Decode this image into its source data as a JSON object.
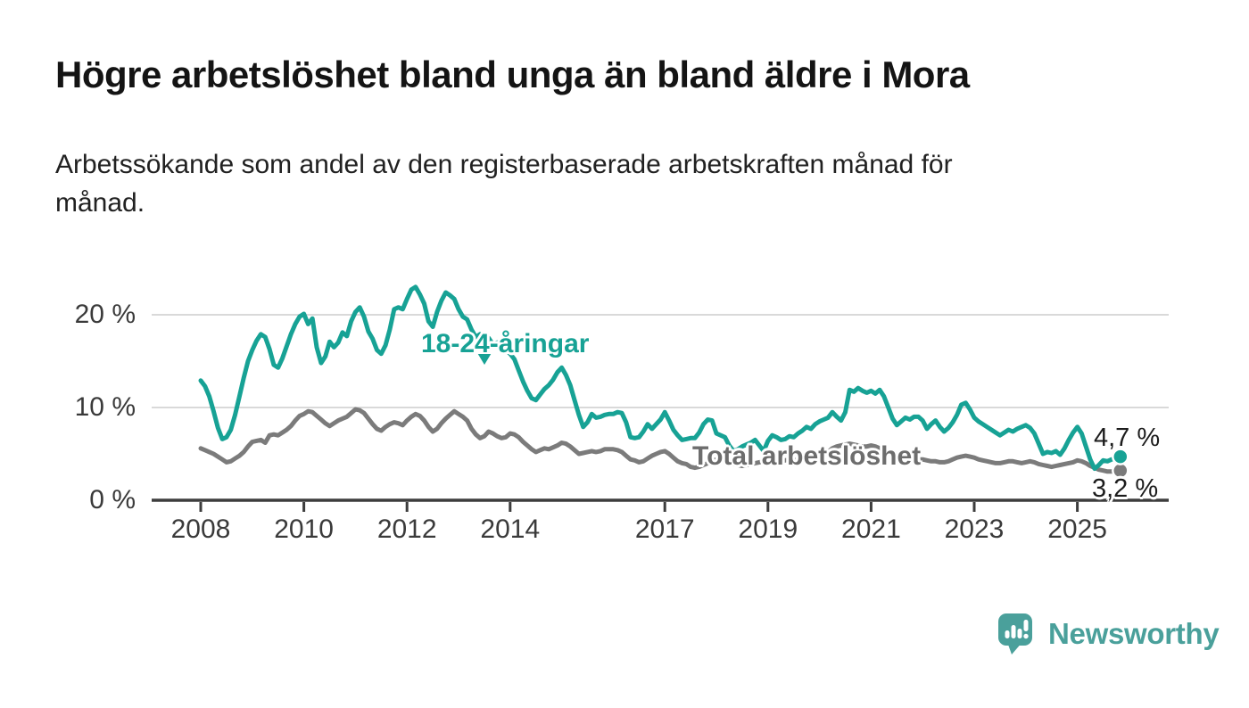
{
  "page": {
    "title": "Högre arbetslöshet bland unga än bland äldre i Mora",
    "subtitle": "Arbetssökande som andel av den registerbaserade arbetskraften månad för månad.",
    "background": "#ffffff"
  },
  "branding": {
    "name": "Newsworthy",
    "icon": "newsworthy-logo-icon",
    "color": "#4aa09b"
  },
  "colors": {
    "youth_line": "#17a295",
    "total_line": "#7b7b7b",
    "total_label": "#6d6d6d",
    "axis": "#3d3d3d",
    "grid": "#d9d9d9",
    "value_label": "#1c1c1c"
  },
  "chart_data": {
    "type": "line",
    "title": "Högre arbetslöshet bland unga än bland äldre i Mora",
    "subtitle": "Arbetssökande som andel av den registerbaserade arbetskraften månad för månad.",
    "x_unit": "month",
    "x_start": "2008-01",
    "x_end": "2025-11",
    "ylim": [
      0,
      24
    ],
    "grid": "horizontal-light",
    "legend_position": "inline-labels",
    "y_ticks": [
      {
        "value": 0,
        "label": "0 %"
      },
      {
        "value": 10,
        "label": "10 %"
      },
      {
        "value": 20,
        "label": "20 %"
      }
    ],
    "x_ticks": [
      {
        "year": 2008,
        "label": "2008"
      },
      {
        "year": 2010,
        "label": "2010"
      },
      {
        "year": 2012,
        "label": "2012"
      },
      {
        "year": 2014,
        "label": "2014"
      },
      {
        "year": 2017,
        "label": "2017"
      },
      {
        "year": 2019,
        "label": "2019"
      },
      {
        "year": 2021,
        "label": "2021"
      },
      {
        "year": 2023,
        "label": "2023"
      },
      {
        "year": 2025,
        "label": "2025"
      }
    ],
    "series": [
      {
        "name": "18-24-åringar",
        "color": "#17a295",
        "end_label": "4,7 %",
        "end_value": 4.7,
        "values": [
          12.9,
          12.3,
          11.2,
          9.6,
          7.8,
          6.6,
          6.8,
          7.6,
          9.2,
          11.2,
          13.2,
          15.0,
          16.2,
          17.2,
          17.9,
          17.6,
          16.3,
          14.6,
          14.3,
          15.3,
          16.6,
          17.9,
          19.0,
          19.8,
          20.1,
          19.0,
          19.6,
          16.5,
          14.8,
          15.5,
          17.1,
          16.5,
          17.0,
          18.1,
          17.7,
          19.3,
          20.3,
          20.8,
          19.8,
          18.2,
          17.4,
          16.2,
          15.8,
          16.7,
          18.4,
          20.6,
          20.8,
          20.6,
          21.7,
          22.7,
          23.0,
          22.2,
          21.2,
          19.3,
          18.7,
          20.3,
          21.5,
          22.4,
          22.1,
          21.7,
          20.6,
          19.8,
          19.5,
          18.4,
          17.6,
          17.9,
          17.1,
          17.5,
          16.8,
          17.0,
          16.4,
          16.1,
          15.8,
          15.2,
          14.0,
          12.8,
          11.8,
          11.0,
          10.8,
          11.4,
          12.0,
          12.4,
          13.0,
          13.8,
          14.3,
          13.5,
          12.4,
          10.8,
          9.2,
          7.9,
          8.4,
          9.3,
          8.9,
          9.0,
          9.2,
          9.3,
          9.3,
          9.5,
          9.4,
          8.4,
          6.8,
          6.7,
          6.8,
          7.4,
          8.2,
          7.7,
          8.2,
          8.7,
          9.5,
          8.6,
          7.6,
          7.0,
          6.5,
          6.6,
          6.7,
          6.7,
          7.3,
          8.2,
          8.7,
          8.6,
          7.2,
          7.0,
          6.8,
          5.9,
          5.3,
          5.5,
          5.8,
          6.0,
          6.2,
          6.5,
          5.9,
          5.3,
          6.4,
          7.0,
          6.8,
          6.5,
          6.6,
          6.9,
          6.8,
          7.2,
          7.5,
          7.9,
          7.7,
          8.2,
          8.5,
          8.7,
          8.9,
          9.5,
          9.0,
          8.6,
          9.5,
          11.9,
          11.7,
          12.1,
          11.8,
          11.6,
          11.8,
          11.5,
          11.9,
          11.2,
          10.0,
          8.8,
          8.1,
          8.5,
          8.9,
          8.7,
          9.0,
          9.0,
          8.6,
          7.7,
          8.2,
          8.6,
          7.9,
          7.4,
          7.8,
          8.4,
          9.2,
          10.3,
          10.5,
          9.8,
          8.9,
          8.5,
          8.2,
          7.9,
          7.6,
          7.3,
          7.0,
          7.3,
          7.6,
          7.4,
          7.7,
          7.9,
          8.1,
          7.8,
          7.2,
          6.1,
          5.0,
          5.2,
          5.1,
          5.3,
          4.9,
          5.6,
          6.5,
          7.3,
          7.9,
          7.2,
          5.8,
          4.4,
          3.4,
          3.8,
          4.3,
          4.2,
          4.4,
          4.5,
          4.7
        ]
      },
      {
        "name": "Total arbetslöshet",
        "color": "#7b7b7b",
        "end_label": "3,2 %",
        "end_value": 3.2,
        "values": [
          5.6,
          5.4,
          5.2,
          5.0,
          4.7,
          4.4,
          4.1,
          4.2,
          4.5,
          4.8,
          5.2,
          5.8,
          6.3,
          6.4,
          6.5,
          6.2,
          7.0,
          7.1,
          7.0,
          7.3,
          7.6,
          8.0,
          8.6,
          9.1,
          9.3,
          9.6,
          9.5,
          9.1,
          8.7,
          8.3,
          8.0,
          8.3,
          8.6,
          8.8,
          9.0,
          9.4,
          9.8,
          9.7,
          9.4,
          8.8,
          8.2,
          7.7,
          7.5,
          7.9,
          8.2,
          8.4,
          8.3,
          8.1,
          8.6,
          9.0,
          9.3,
          9.1,
          8.6,
          7.9,
          7.4,
          7.7,
          8.3,
          8.8,
          9.2,
          9.6,
          9.3,
          9.0,
          8.6,
          7.7,
          7.1,
          6.7,
          6.9,
          7.4,
          7.2,
          6.9,
          6.7,
          6.8,
          7.2,
          7.1,
          6.8,
          6.3,
          5.9,
          5.5,
          5.2,
          5.4,
          5.6,
          5.5,
          5.7,
          5.9,
          6.2,
          6.1,
          5.8,
          5.4,
          5.0,
          5.1,
          5.2,
          5.3,
          5.2,
          5.3,
          5.5,
          5.5,
          5.5,
          5.4,
          5.2,
          4.8,
          4.4,
          4.3,
          4.1,
          4.2,
          4.5,
          4.8,
          5.0,
          5.2,
          5.3,
          5.0,
          4.6,
          4.2,
          4.0,
          3.9,
          3.6,
          3.5,
          3.6,
          3.8,
          4.0,
          4.2,
          4.4,
          4.3,
          4.2,
          4.0,
          3.9,
          3.8,
          3.7,
          3.8,
          3.9,
          4.0,
          4.1,
          4.2,
          4.3,
          4.4,
          4.3,
          4.2,
          4.3,
          4.4,
          4.3,
          4.4,
          4.5,
          4.6,
          4.6,
          4.7,
          4.8,
          4.9,
          5.2,
          5.6,
          5.8,
          5.9,
          6.0,
          6.1,
          6.0,
          5.9,
          5.8,
          5.8,
          5.9,
          5.8,
          5.6,
          5.3,
          5.1,
          4.9,
          4.7,
          4.6,
          4.5,
          4.4,
          4.4,
          4.4,
          4.4,
          4.3,
          4.2,
          4.2,
          4.1,
          4.1,
          4.2,
          4.4,
          4.6,
          4.7,
          4.8,
          4.7,
          4.6,
          4.4,
          4.3,
          4.2,
          4.1,
          4.0,
          4.0,
          4.1,
          4.2,
          4.2,
          4.1,
          4.0,
          4.1,
          4.2,
          4.1,
          3.9,
          3.8,
          3.7,
          3.6,
          3.7,
          3.8,
          3.9,
          4.0,
          4.1,
          4.3,
          4.2,
          4.0,
          3.7,
          3.5,
          3.3,
          3.2,
          3.1,
          3.1,
          3.1,
          3.2
        ]
      }
    ]
  }
}
